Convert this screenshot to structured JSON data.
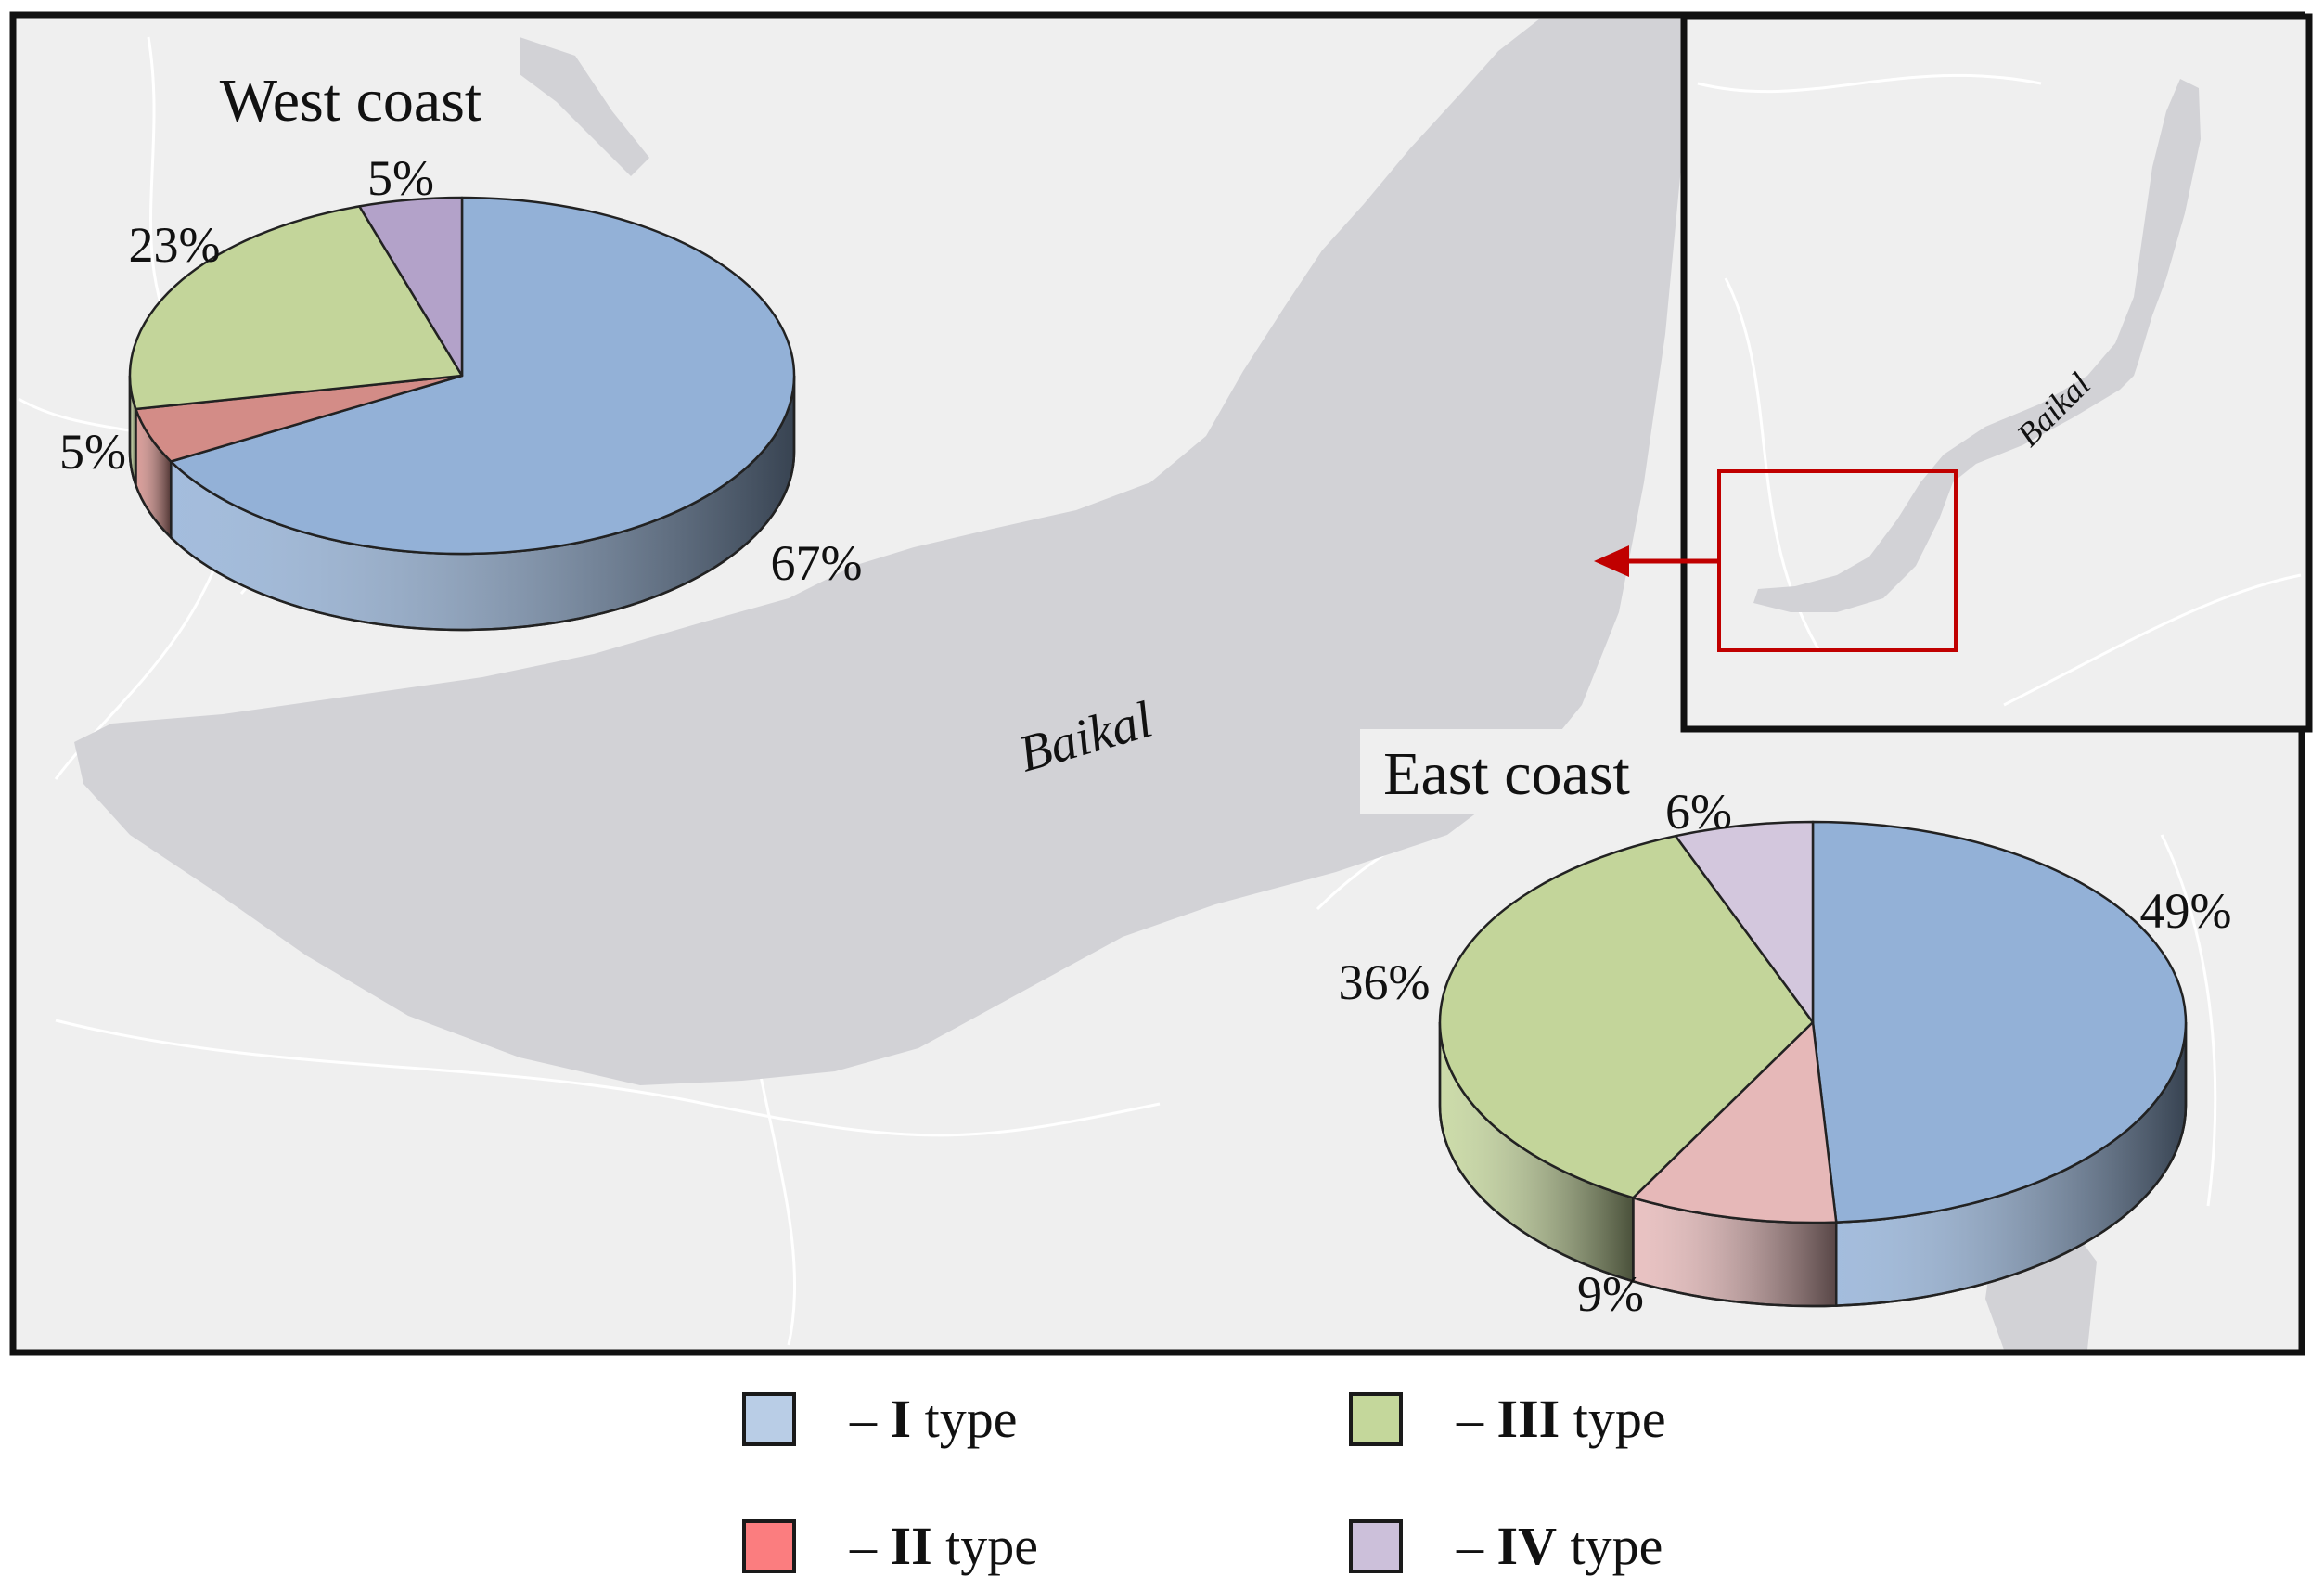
{
  "map": {
    "lake_label": "Baikal",
    "inset_lake_label": "Baikal",
    "colors": {
      "land": "#efefef",
      "water": "#d2d2d6",
      "road": "#ffffff",
      "frame": "#111111",
      "locator_box": "#c00000",
      "lake_label": "#1f3a5f"
    }
  },
  "chart_data": [
    {
      "type": "pie",
      "title": "West coast",
      "categories": [
        "I type",
        "II type",
        "III type",
        "IV type"
      ],
      "values": [
        67,
        5,
        23,
        5
      ],
      "labels": [
        "67%",
        "5%",
        "23%",
        "5%"
      ],
      "colors": [
        "#93b1d7",
        "#d38c87",
        "#c3d59a",
        "#b3a2c9"
      ]
    },
    {
      "type": "pie",
      "title": "East coast",
      "categories": [
        "I type",
        "II type",
        "III type",
        "IV type"
      ],
      "values": [
        49,
        9,
        36,
        6
      ],
      "labels": [
        "49%",
        "9%",
        "36%",
        "6%"
      ],
      "colors": [
        "#93b1d7",
        "#e6b8b8",
        "#c3d59a",
        "#d3c7dd"
      ]
    }
  ],
  "legend": {
    "dash": "– ",
    "items": [
      {
        "roman": "I",
        "word": " type",
        "color": "#b9cde6"
      },
      {
        "roman": "II",
        "word": " type",
        "color": "#fb7d7f"
      },
      {
        "roman": "III",
        "word": " type",
        "color": "#c4d79b"
      },
      {
        "roman": "IV",
        "word": " type",
        "color": "#ccc0da"
      }
    ]
  }
}
